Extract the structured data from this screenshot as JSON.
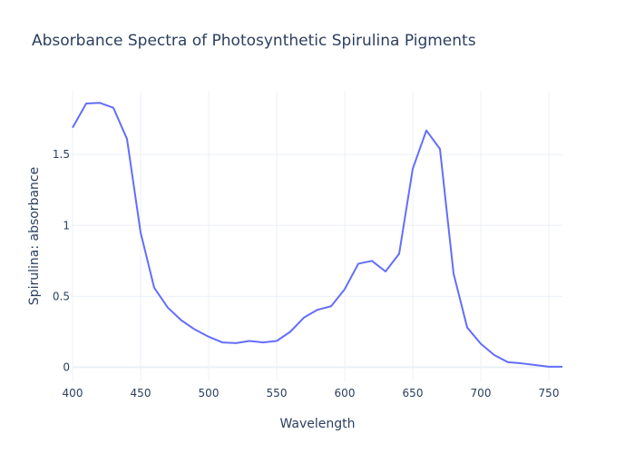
{
  "chart_data": {
    "type": "line",
    "title": "Absorbance Spectra of Photosynthetic Spirulina Pigments",
    "xlabel": "Wavelength",
    "ylabel": "Spirulina: absorbance",
    "xlim": [
      400,
      760
    ],
    "ylim": [
      -0.1,
      1.95
    ],
    "x_ticks": [
      400,
      450,
      500,
      550,
      600,
      650,
      700,
      750
    ],
    "x_tick_labels": [
      "400",
      "450",
      "500",
      "550",
      "600",
      "650",
      "700",
      "750"
    ],
    "y_ticks": [
      0,
      0.5,
      1,
      1.5
    ],
    "y_tick_labels": [
      "0",
      "0.5",
      "1",
      "1.5"
    ],
    "grid": true,
    "legend": "none",
    "series": [
      {
        "color": "#636efa",
        "x": [
          400,
          410,
          420,
          430,
          440,
          450,
          460,
          470,
          480,
          490,
          500,
          510,
          520,
          530,
          540,
          550,
          560,
          570,
          580,
          590,
          600,
          610,
          620,
          630,
          640,
          650,
          660,
          670,
          680,
          690,
          700,
          710,
          720,
          730,
          740,
          750,
          760
        ],
        "y": [
          1.69,
          1.86,
          1.865,
          1.83,
          1.61,
          0.95,
          0.56,
          0.42,
          0.33,
          0.265,
          0.215,
          0.175,
          0.17,
          0.185,
          0.175,
          0.185,
          0.25,
          0.35,
          0.405,
          0.43,
          0.55,
          0.73,
          0.75,
          0.675,
          0.8,
          1.4,
          1.67,
          1.54,
          0.66,
          0.28,
          0.165,
          0.085,
          0.035,
          0.027,
          0.015,
          0.003,
          0.003
        ]
      }
    ]
  }
}
